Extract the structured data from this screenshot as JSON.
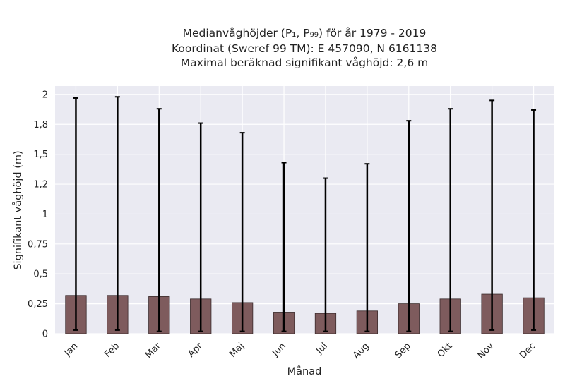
{
  "chart_data": {
    "type": "bar",
    "title_lines": [
      "Medianvåghöjder (P₁, P₉₉) för år 1979 - 2019",
      "Koordinat (Sweref 99 TM): E 457090, N 6161138",
      "Maximal beräknad signifikant våghöjd: 2,6 m"
    ],
    "xlabel": "Månad",
    "ylabel": "Signifikant våghöjd (m)",
    "categories": [
      "Jan",
      "Feb",
      "Mar",
      "Apr",
      "Maj",
      "Jun",
      "Jul",
      "Aug",
      "Sep",
      "Okt",
      "Nov",
      "Dec"
    ],
    "series": [
      {
        "values": [
          0.32,
          0.32,
          0.31,
          0.29,
          0.26,
          0.18,
          0.17,
          0.19,
          0.25,
          0.29,
          0.33,
          0.3
        ],
        "p1": [
          0.03,
          0.03,
          0.02,
          0.02,
          0.02,
          0.02,
          0.02,
          0.02,
          0.02,
          0.02,
          0.03,
          0.03
        ],
        "p99": [
          1.97,
          1.98,
          1.88,
          1.76,
          1.68,
          1.43,
          1.3,
          1.42,
          1.78,
          1.88,
          1.95,
          1.87
        ]
      }
    ],
    "ylim": [
      0,
      2.07
    ],
    "yticks": [
      0,
      0.25,
      0.5,
      0.75,
      1,
      1.25,
      1.5,
      1.75,
      2
    ],
    "ytick_labels": [
      "0",
      "0,25",
      "0,5",
      "0,75",
      "1",
      "1,2",
      "1,5",
      "1,8",
      "2"
    ],
    "grid": true,
    "colors": {
      "bar_fill": "#7e5b5d",
      "bar_edge": "#3a2a2b",
      "errorbar": "#000000",
      "plot_background": "#eaeaf2",
      "grid": "#ffffff"
    }
  }
}
